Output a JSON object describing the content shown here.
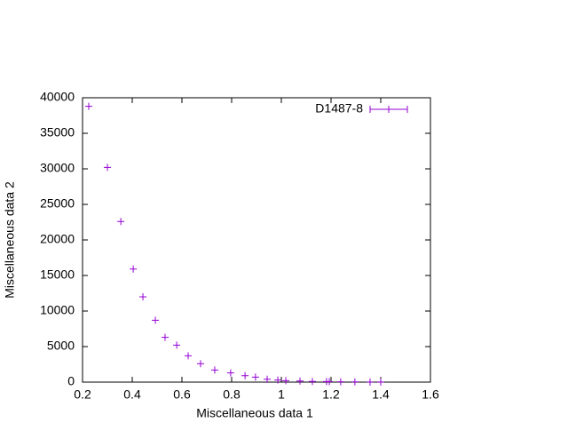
{
  "chart_data": {
    "type": "scatter",
    "x_label": "Miscellaneous data 1",
    "y_label": "Miscellaneous data 2",
    "series": [
      {
        "name": "D1487-8",
        "color": "#9400d3",
        "x": [
          0.225,
          0.3,
          0.354,
          0.404,
          0.443,
          0.493,
          0.532,
          0.579,
          0.625,
          0.675,
          0.732,
          0.796,
          0.854,
          0.896,
          0.943,
          0.986,
          1.018,
          1.075,
          1.125,
          1.182,
          1.193,
          1.239,
          1.296,
          1.357,
          1.4
        ],
        "values": [
          38800,
          30200,
          22600,
          15900,
          12000,
          8700,
          6300,
          5200,
          3700,
          2600,
          1700,
          1300,
          900,
          700,
          400,
          300,
          200,
          150,
          100,
          80,
          70,
          50,
          30,
          20,
          10
        ]
      }
    ],
    "xlim": [
      0.2,
      1.6
    ],
    "xticks": [
      0.2,
      0.4,
      0.6,
      0.8,
      1,
      1.2,
      1.4,
      1.6
    ],
    "ylim": [
      0,
      40000
    ],
    "yticks": [
      0,
      5000,
      10000,
      15000,
      20000,
      25000,
      30000,
      35000,
      40000
    ],
    "grid": false,
    "legend": "top-right"
  }
}
